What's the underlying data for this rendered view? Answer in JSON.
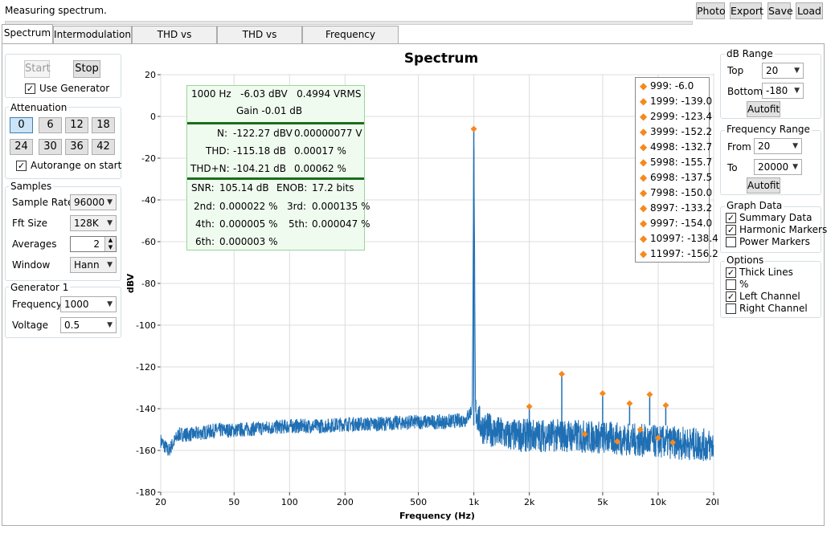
{
  "status": "Measuring spectrum.",
  "toolbar": {
    "photo": "Photo",
    "export": "Export",
    "save": "Save",
    "load": "Load"
  },
  "tabs": [
    "Spectrum",
    "Intermodulation",
    "THD vs Frequency",
    "THD vs Amplitude",
    "Frequency Response"
  ],
  "left": {
    "start": "Start",
    "stop": "Stop",
    "use_generator": "Use Generator",
    "attenuation_title": "Attenuation",
    "attenuation": [
      "0",
      "6",
      "12",
      "18",
      "24",
      "30",
      "36",
      "42"
    ],
    "autorange": "Autorange on start",
    "samples_title": "Samples",
    "sample_rate_label": "Sample Rate",
    "sample_rate": "96000",
    "fft_label": "Fft Size",
    "fft": "128K",
    "averages_label": "Averages",
    "averages": "2",
    "window_label": "Window",
    "window": "Hann",
    "gen_title": "Generator 1",
    "freq_label": "Frequency",
    "freq": "1000",
    "voltage_label": "Voltage",
    "voltage": "0.5"
  },
  "right": {
    "db_title": "dB Range",
    "top_label": "Top",
    "top": "20",
    "bottom_label": "Bottom",
    "bottom": "-180",
    "autofit": "Autofit",
    "fr_title": "Frequency Range",
    "from_label": "From",
    "from": "20",
    "to_label": "To",
    "to": "20000",
    "gd_title": "Graph Data",
    "summary": "Summary Data",
    "harmonic": "Harmonic Markers",
    "power": "Power Markers",
    "opt_title": "Options",
    "thick": "Thick Lines",
    "percent": "%",
    "left_ch": "Left Channel",
    "right_ch": "Right Channel"
  },
  "summary": {
    "r1": "1000 Hz   -6.03 dBV   0.4994 VRMS",
    "r2": "Gain -0.01 dB",
    "n_label": "N:",
    "n_db": "-122.27 dBV",
    "n_v": "0.00000077 V",
    "thd_label": "THD:",
    "thd_db": "-115.18 dB",
    "thd_p": "0.00017 %",
    "thdn_label": "THD+N:",
    "thdn_db": "-104.21 dB",
    "thdn_p": "0.00062 %",
    "snr_label": "SNR:",
    "snr": "105.14 dB",
    "enob_label": "ENOB:",
    "enob": "17.2 bits",
    "h2_label": "2nd:",
    "h2": "0.000022 %",
    "h3_label": "3rd:",
    "h3": "0.000135 %",
    "h4_label": "4th:",
    "h4": "0.000005 %",
    "h5_label": "5th:",
    "h5": "0.000047 %",
    "h6_label": "6th:",
    "h6": "0.000003 %"
  },
  "markers": [
    "999: -6.0",
    "1999: -139.0",
    "2999: -123.4",
    "3999: -152.2",
    "4998: -132.7",
    "5998: -155.7",
    "6998: -137.5",
    "7998: -150.0",
    "8997: -133.2",
    "9997: -154.0",
    "10997: -138.4",
    "11997: -156.2"
  ],
  "colors": {
    "trace": "#1f6fb4",
    "marker": "#f5891f",
    "summary_border": "#9bd49b",
    "summary_rule": "#1a6e1a"
  },
  "chart_data": {
    "type": "line",
    "title": "Spectrum",
    "xlabel": "Frequency (Hz)",
    "ylabel": "dBV",
    "x_scale": "log",
    "xlim": [
      20,
      20000
    ],
    "ylim": [
      -180,
      20
    ],
    "x_ticks": [
      20,
      50,
      100,
      200,
      500,
      1000,
      2000,
      5000,
      10000,
      20000
    ],
    "x_tick_labels": [
      "20",
      "50",
      "100",
      "200",
      "500",
      "1k",
      "2k",
      "5k",
      "10k",
      "20k"
    ],
    "y_ticks": [
      20,
      0,
      -20,
      -40,
      -60,
      -80,
      -100,
      -120,
      -140,
      -160,
      -180
    ],
    "series": [
      {
        "values_x": [
          20,
          22,
          25,
          30,
          40,
          50,
          70,
          100,
          150,
          200,
          300,
          500,
          700,
          900,
          980,
          1000,
          1020,
          1100,
          1500,
          2000,
          3000,
          5000,
          7000,
          10000,
          15000,
          20000
        ],
        "values_y": [
          -155,
          -160,
          -152,
          -152,
          -150,
          -150,
          -149,
          -148,
          -148,
          -147,
          -147,
          -146,
          -146,
          -145,
          -140,
          -6,
          -140,
          -148,
          -152,
          -152,
          -152,
          -153,
          -154,
          -155,
          -156,
          -157
        ]
      }
    ],
    "harmonics": [
      {
        "f": 999,
        "db": -6.0
      },
      {
        "f": 1999,
        "db": -139.0
      },
      {
        "f": 2999,
        "db": -123.4
      },
      {
        "f": 3999,
        "db": -152.2
      },
      {
        "f": 4998,
        "db": -132.7
      },
      {
        "f": 5998,
        "db": -155.7
      },
      {
        "f": 6998,
        "db": -137.5
      },
      {
        "f": 7998,
        "db": -150.0
      },
      {
        "f": 8997,
        "db": -133.2
      },
      {
        "f": 9997,
        "db": -154.0
      },
      {
        "f": 10997,
        "db": -138.4
      },
      {
        "f": 11997,
        "db": -156.2
      }
    ],
    "grid": true
  }
}
